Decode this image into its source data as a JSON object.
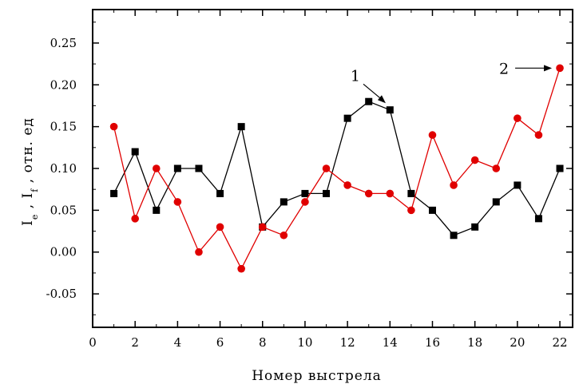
{
  "chart_data": {
    "type": "line",
    "title": "",
    "xlabel": "Номер выстрела",
    "ylabel": "I , I , отн. ед",
    "ylabel_subscripts": [
      "e",
      "f"
    ],
    "xlim": [
      0,
      22.6
    ],
    "ylim": [
      -0.09,
      0.29
    ],
    "x_ticks": [
      0,
      2,
      4,
      6,
      8,
      10,
      12,
      14,
      16,
      18,
      20,
      22
    ],
    "x_tick_labels": [
      "0",
      "2",
      "4",
      "6",
      "8",
      "10",
      "12",
      "14",
      "16",
      "18",
      "20",
      "22"
    ],
    "y_ticks": [
      -0.05,
      0.0,
      0.05,
      0.1,
      0.15,
      0.2,
      0.25
    ],
    "y_tick_labels": [
      "-0.05",
      "0.00",
      "0.05",
      "0.10",
      "0.15",
      "0.20",
      "0.25"
    ],
    "grid": false,
    "legend": "none",
    "x": [
      1,
      2,
      3,
      4,
      5,
      6,
      7,
      8,
      9,
      10,
      11,
      12,
      13,
      14,
      15,
      16,
      17,
      18,
      19,
      20,
      21,
      22
    ],
    "series": [
      {
        "label": "1",
        "color": "#000000",
        "marker": "square",
        "values": [
          0.07,
          0.12,
          0.05,
          0.1,
          0.1,
          0.07,
          0.15,
          0.03,
          0.06,
          0.07,
          0.07,
          0.16,
          0.18,
          0.17,
          0.07,
          0.05,
          0.02,
          0.03,
          0.06,
          0.08,
          0.04,
          0.1
        ]
      },
      {
        "label": "2",
        "color": "#e00000",
        "marker": "circle",
        "values": [
          0.15,
          0.04,
          0.1,
          0.06,
          0.0,
          0.03,
          -0.02,
          0.03,
          0.02,
          0.06,
          0.1,
          0.08,
          0.07,
          0.07,
          0.05,
          0.14,
          0.08,
          0.11,
          0.1,
          0.16,
          0.14,
          0.22
        ]
      }
    ],
    "annotations": [
      {
        "text": "1",
        "target_series": 0,
        "target_x": 13.8,
        "target_y": 0.178
      },
      {
        "text": "2",
        "target_series": 1,
        "target_x": 21.7,
        "target_y": 0.22
      }
    ]
  }
}
